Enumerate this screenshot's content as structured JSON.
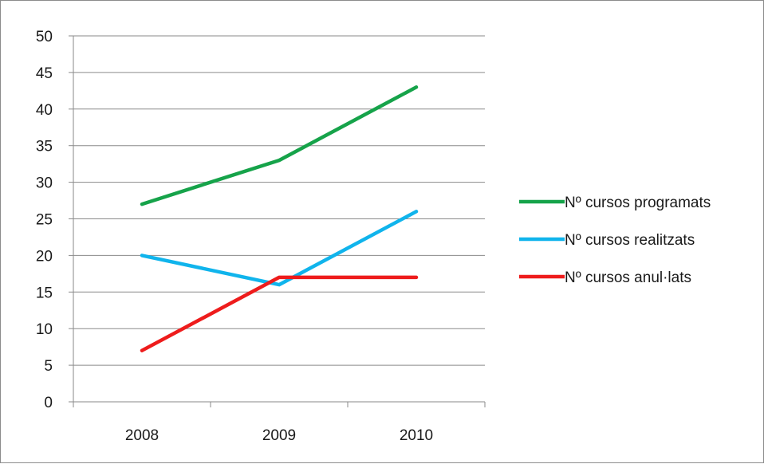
{
  "chart_data": {
    "type": "line",
    "title": "",
    "xlabel": "",
    "ylabel": "",
    "categories": [
      "2008",
      "2009",
      "2010"
    ],
    "ylim": [
      0,
      50
    ],
    "yticks": [
      0,
      5,
      10,
      15,
      20,
      25,
      30,
      35,
      40,
      45,
      50
    ],
    "grid": true,
    "legend_position": "right",
    "series": [
      {
        "name": "Nº cursos programats",
        "color": "#16a34a",
        "values": [
          27,
          33,
          43
        ]
      },
      {
        "name": "Nº cursos realitzats",
        "color": "#10b4ec",
        "values": [
          20,
          16,
          26
        ]
      },
      {
        "name": "Nº cursos anul·lats",
        "color": "#ee1c1c",
        "values": [
          7,
          17,
          17
        ]
      }
    ]
  }
}
